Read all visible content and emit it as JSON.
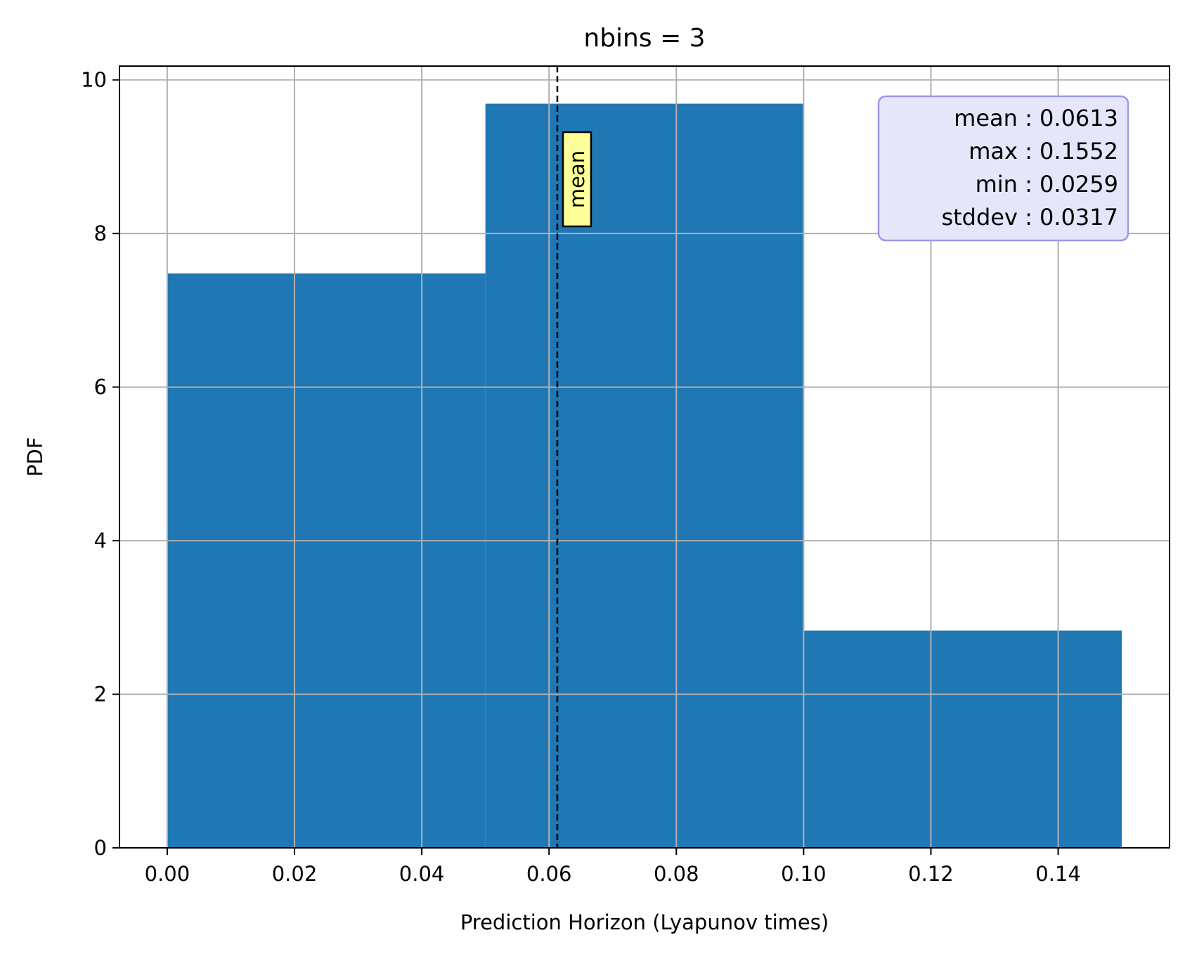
{
  "chart_data": {
    "type": "bar",
    "title": "nbins = 3",
    "xlabel": "Prediction Horizon (Lyapunov times)",
    "ylabel": "PDF",
    "xlim": [
      -0.0075,
      0.1575
    ],
    "ylim": [
      0,
      10.18
    ],
    "grid": true,
    "bins": [
      {
        "start": 0.0,
        "end": 0.05,
        "value": 7.48
      },
      {
        "start": 0.05,
        "end": 0.1,
        "value": 9.69
      },
      {
        "start": 0.1,
        "end": 0.15,
        "value": 2.83
      }
    ],
    "bar_color": "#1f77b4",
    "xticks": [
      0.0,
      0.02,
      0.04,
      0.06,
      0.08,
      0.1,
      0.12,
      0.14
    ],
    "xtick_labels": [
      "0.00",
      "0.02",
      "0.04",
      "0.06",
      "0.08",
      "0.10",
      "0.12",
      "0.14"
    ],
    "yticks": [
      0,
      2,
      4,
      6,
      8,
      10
    ],
    "ytick_labels": [
      "0",
      "2",
      "4",
      "6",
      "8",
      "10"
    ],
    "mean_line": {
      "x": 0.0613,
      "label": "mean",
      "label_bg": "#ffff99"
    },
    "stats_box": {
      "placement": "top-right",
      "bg": "#e6e6fa",
      "border": "#9999ee",
      "lines": [
        "mean : 0.0613",
        "max : 0.1552",
        "min : 0.0259",
        "stddev : 0.0317"
      ]
    }
  }
}
